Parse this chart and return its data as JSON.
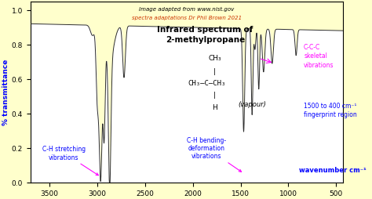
{
  "title": "Infrared spectrum of\n2-methylpropane",
  "ylabel": "% transmittance",
  "xlim": [
    3700,
    430
  ],
  "ylim": [
    0.0,
    1.05
  ],
  "xticks": [
    3500,
    3000,
    2500,
    2000,
    1500,
    1000,
    500
  ],
  "yticks": [
    0.0,
    0.2,
    0.4,
    0.6,
    0.8,
    1.0
  ],
  "bg_color": "#ffffcc",
  "line_color": "#2d2d2d",
  "grid_color": "#bbbbbb",
  "credit_line1": "Image adapted from www.nist.gov",
  "credit_line2": "spectra adaptations Dr Phil Brown 2021"
}
